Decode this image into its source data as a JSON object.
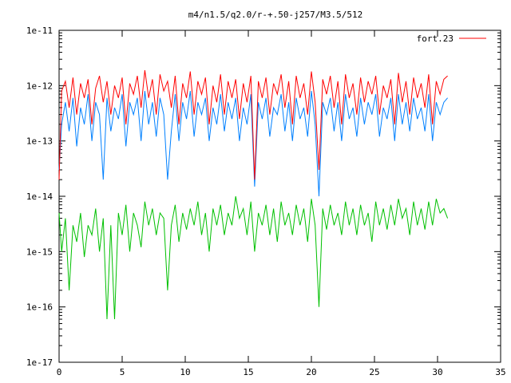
{
  "chart_data": {
    "type": "line",
    "title": "m4/n1.5/q2.0/r-+.50-j257/M3.5/512",
    "xlabel": "",
    "ylabel": "",
    "x_scale": "linear",
    "y_scale": "log",
    "xlim": [
      0,
      35
    ],
    "ylim": [
      1e-17,
      1e-11
    ],
    "x_ticks": [
      "0",
      "5",
      "10",
      "15",
      "20",
      "25",
      "30",
      "35"
    ],
    "y_ticks": [
      "1e-17",
      "1e-16",
      "1e-15",
      "1e-14",
      "1e-13",
      "1e-12",
      "1e-11"
    ],
    "grid": false,
    "legend_position": "top-right",
    "colors": {
      "red": "#ff0000",
      "blue": "#0080ff",
      "green": "#00c000"
    },
    "series": [
      {
        "name": "fort.23",
        "color": "#ff0000",
        "x": [
          0.0,
          0.2,
          0.5,
          0.8,
          1.1,
          1.4,
          1.7,
          2.0,
          2.3,
          2.6,
          2.9,
          3.2,
          3.5,
          3.8,
          4.1,
          4.4,
          4.7,
          5.0,
          5.3,
          5.6,
          5.9,
          6.2,
          6.5,
          6.8,
          7.1,
          7.4,
          7.7,
          8.0,
          8.3,
          8.6,
          8.9,
          9.2,
          9.5,
          9.8,
          10.1,
          10.4,
          10.7,
          11.0,
          11.3,
          11.6,
          11.9,
          12.2,
          12.5,
          12.8,
          13.1,
          13.4,
          13.7,
          14.0,
          14.3,
          14.6,
          14.9,
          15.2,
          15.5,
          15.8,
          16.1,
          16.4,
          16.7,
          17.0,
          17.3,
          17.6,
          17.9,
          18.2,
          18.5,
          18.8,
          19.1,
          19.4,
          19.7,
          20.0,
          20.3,
          20.6,
          20.9,
          21.2,
          21.5,
          21.8,
          22.1,
          22.4,
          22.7,
          23.0,
          23.3,
          23.6,
          23.9,
          24.2,
          24.5,
          24.8,
          25.1,
          25.4,
          25.7,
          26.0,
          26.3,
          26.6,
          26.9,
          27.2,
          27.5,
          27.8,
          28.1,
          28.4,
          28.7,
          29.0,
          29.3,
          29.6,
          29.9,
          30.2,
          30.5,
          30.8
        ],
        "y": [
          2e-14,
          8e-13,
          1.2e-12,
          4e-13,
          1.4e-12,
          3e-13,
          1.1e-12,
          6e-13,
          1.3e-12,
          2e-13,
          9e-13,
          1.5e-12,
          5e-13,
          1.2e-12,
          3e-13,
          1e-12,
          6e-13,
          1.4e-12,
          2e-13,
          1.1e-12,
          7e-13,
          1.5e-12,
          4e-13,
          1.9e-12,
          6e-13,
          1.3e-12,
          3e-13,
          1.6e-12,
          8e-13,
          1.2e-12,
          4e-13,
          1.5e-12,
          2e-13,
          1.1e-12,
          6e-13,
          1.8e-12,
          3e-13,
          1.2e-12,
          7e-13,
          1.4e-12,
          2e-13,
          1e-12,
          5e-13,
          1.6e-12,
          3e-13,
          1.2e-12,
          6e-13,
          1.3e-12,
          2.5e-13,
          1.1e-12,
          5e-13,
          1.5e-12,
          2e-14,
          1.2e-12,
          6e-13,
          1.4e-12,
          3e-13,
          1.1e-12,
          7e-13,
          1.6e-12,
          4e-13,
          1.2e-12,
          2e-13,
          1.5e-12,
          6e-13,
          1.1e-12,
          3e-13,
          1.8e-12,
          5e-13,
          3e-14,
          1.3e-12,
          7e-13,
          1.5e-12,
          4e-13,
          1.2e-12,
          2e-13,
          1.6e-12,
          6e-13,
          1.1e-12,
          3e-13,
          1.4e-12,
          5e-13,
          1.2e-12,
          7e-13,
          1.5e-12,
          3e-13,
          1e-12,
          6e-13,
          1.3e-12,
          2e-13,
          1.7e-12,
          5e-13,
          1.2e-12,
          3e-13,
          1.4e-12,
          6e-13,
          1.1e-12,
          4e-13,
          1.6e-12,
          2e-13,
          1.2e-12,
          7e-13,
          1.3e-12,
          1.5e-12
        ]
      },
      {
        "color": "#0080ff",
        "x": [
          0.0,
          0.2,
          0.5,
          0.8,
          1.1,
          1.4,
          1.7,
          2.0,
          2.3,
          2.6,
          2.9,
          3.2,
          3.5,
          3.8,
          4.1,
          4.4,
          4.7,
          5.0,
          5.3,
          5.6,
          5.9,
          6.2,
          6.5,
          6.8,
          7.1,
          7.4,
          7.7,
          8.0,
          8.3,
          8.6,
          8.9,
          9.2,
          9.5,
          9.8,
          10.1,
          10.4,
          10.7,
          11.0,
          11.3,
          11.6,
          11.9,
          12.2,
          12.5,
          12.8,
          13.1,
          13.4,
          13.7,
          14.0,
          14.3,
          14.6,
          14.9,
          15.2,
          15.5,
          15.8,
          16.1,
          16.4,
          16.7,
          17.0,
          17.3,
          17.6,
          17.9,
          18.2,
          18.5,
          18.8,
          19.1,
          19.4,
          19.7,
          20.0,
          20.3,
          20.6,
          20.9,
          21.2,
          21.5,
          21.8,
          22.1,
          22.4,
          22.7,
          23.0,
          23.3,
          23.6,
          23.9,
          24.2,
          24.5,
          24.8,
          25.1,
          25.4,
          25.7,
          26.0,
          26.3,
          26.6,
          26.9,
          27.2,
          27.5,
          27.8,
          28.1,
          28.4,
          28.7,
          29.0,
          29.3,
          29.6,
          29.9,
          30.2,
          30.5,
          30.8
        ],
        "y": [
          3e-14,
          2e-13,
          5e-13,
          1.5e-13,
          6e-13,
          8e-14,
          4e-13,
          2e-13,
          7e-13,
          1e-13,
          5e-13,
          3e-13,
          2e-14,
          6e-13,
          1.5e-13,
          4e-13,
          2.5e-13,
          7e-13,
          8e-14,
          5e-13,
          3e-13,
          6e-13,
          1e-13,
          8e-13,
          2e-13,
          5e-13,
          1.2e-13,
          6e-13,
          3e-13,
          2e-14,
          1.5e-13,
          7e-13,
          1e-13,
          5e-13,
          2.5e-13,
          8e-13,
          1.2e-13,
          5e-13,
          3e-13,
          6e-13,
          1e-13,
          4e-13,
          2e-13,
          7e-13,
          1.5e-13,
          5e-13,
          2.5e-13,
          6e-13,
          1e-13,
          4e-13,
          2e-13,
          7e-13,
          1.5e-14,
          5e-13,
          2.5e-13,
          6e-13,
          1.2e-13,
          4e-13,
          3e-13,
          7e-13,
          1.5e-13,
          5e-13,
          1e-13,
          6e-13,
          2.5e-13,
          4e-13,
          1.2e-13,
          8e-13,
          2e-13,
          1e-14,
          5e-13,
          3e-13,
          6e-13,
          1.5e-13,
          5e-13,
          1e-13,
          7e-13,
          2.5e-13,
          4e-13,
          1.2e-13,
          6e-13,
          2e-13,
          5e-13,
          3e-13,
          7e-13,
          1.2e-13,
          4e-13,
          2.5e-13,
          6e-13,
          1e-13,
          7e-13,
          2e-13,
          5e-13,
          1.5e-13,
          6e-13,
          2.5e-13,
          4e-13,
          1.5e-13,
          7e-13,
          1e-13,
          5e-13,
          3e-13,
          5e-13,
          6e-13
        ]
      },
      {
        "color": "#00c000",
        "x": [
          0.0,
          0.2,
          0.5,
          0.8,
          1.1,
          1.4,
          1.7,
          2.0,
          2.3,
          2.6,
          2.9,
          3.2,
          3.5,
          3.8,
          4.1,
          4.4,
          4.7,
          5.0,
          5.3,
          5.6,
          5.9,
          6.2,
          6.5,
          6.8,
          7.1,
          7.4,
          7.7,
          8.0,
          8.3,
          8.6,
          8.9,
          9.2,
          9.5,
          9.8,
          10.1,
          10.4,
          10.7,
          11.0,
          11.3,
          11.6,
          11.9,
          12.2,
          12.5,
          12.8,
          13.1,
          13.4,
          13.7,
          14.0,
          14.3,
          14.6,
          14.9,
          15.2,
          15.5,
          15.8,
          16.1,
          16.4,
          16.7,
          17.0,
          17.3,
          17.6,
          17.9,
          18.2,
          18.5,
          18.8,
          19.1,
          19.4,
          19.7,
          20.0,
          20.3,
          20.6,
          20.9,
          21.2,
          21.5,
          21.8,
          22.1,
          22.4,
          22.7,
          23.0,
          23.3,
          23.6,
          23.9,
          24.2,
          24.5,
          24.8,
          25.1,
          25.4,
          25.7,
          26.0,
          26.3,
          26.6,
          26.9,
          27.2,
          27.5,
          27.8,
          28.1,
          28.4,
          28.7,
          29.0,
          29.3,
          29.6,
          29.9,
          30.2,
          30.5,
          30.8
        ],
        "y": [
          5e-15,
          1e-15,
          4e-15,
          2e-16,
          3e-15,
          1.5e-15,
          5e-15,
          8e-16,
          3e-15,
          2e-15,
          6e-15,
          1e-15,
          4e-15,
          6e-17,
          3e-15,
          6e-17,
          5e-15,
          2e-15,
          7e-15,
          1e-15,
          5e-15,
          3e-15,
          1.2e-15,
          8e-15,
          3e-15,
          6e-15,
          2e-15,
          5e-15,
          4e-15,
          2e-16,
          3e-15,
          7e-15,
          1.5e-15,
          5e-15,
          2.5e-15,
          6e-15,
          3e-15,
          8e-15,
          2e-15,
          5e-15,
          1e-15,
          6e-15,
          3e-15,
          7e-15,
          2e-15,
          5e-15,
          3e-15,
          1e-14,
          4e-15,
          6e-15,
          2e-15,
          8e-15,
          1e-15,
          5e-15,
          3e-15,
          7e-15,
          2e-15,
          6e-15,
          1.5e-15,
          8e-15,
          3e-15,
          5e-15,
          2e-15,
          7e-15,
          3e-15,
          6e-15,
          1.5e-15,
          9e-15,
          3e-15,
          1e-16,
          6e-15,
          2.5e-15,
          7e-15,
          3e-15,
          5e-15,
          2e-15,
          8e-15,
          3e-15,
          6e-15,
          2e-15,
          7e-15,
          3e-15,
          5e-15,
          1.5e-15,
          8e-15,
          3e-15,
          6e-15,
          2.5e-15,
          7e-15,
          3e-15,
          9e-15,
          4e-15,
          6e-15,
          2e-15,
          8e-15,
          3e-15,
          6e-15,
          2.5e-15,
          8e-15,
          3e-15,
          9e-15,
          5e-15,
          6e-15,
          4e-15
        ]
      }
    ]
  }
}
